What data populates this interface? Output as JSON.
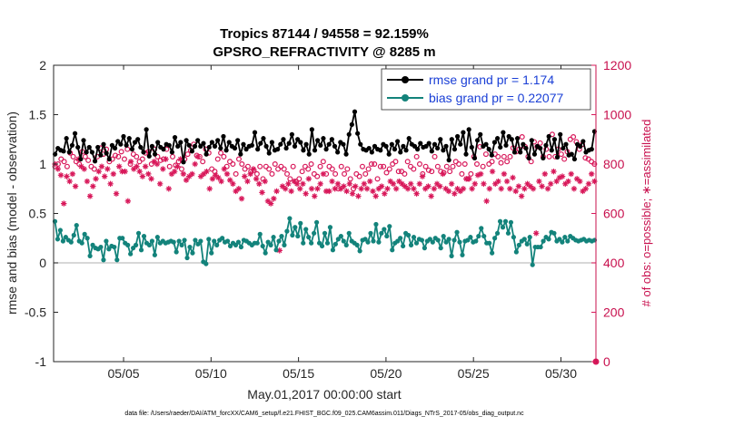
{
  "chart_data": {
    "type": "line",
    "title": "Tropics 87144 / 94558 = 92.159%",
    "subtitle": "GPSRO_REFRACTIVITY @ 8285 m",
    "xlabel": "May.01,2017 00:00:00 start",
    "ylabel": "rmse and bias (model - observation)",
    "y2label": "# of obs: o=possible; ∗=assimilated",
    "footnote": "data file: /Users/raeder/DAI/ATM_forcXX/CAM6_setup/f.e21.FHIST_BGC.f09_025.CAM6assim.011/Diags_NTrS_2017-05/obs_diag_output.nc",
    "xlim": [
      1,
      32
    ],
    "ylim": [
      -1,
      2
    ],
    "y2lim": [
      0,
      1200
    ],
    "xticks": [
      5,
      10,
      15,
      20,
      25,
      30
    ],
    "xticklabels": [
      "05/05",
      "05/10",
      "05/15",
      "05/20",
      "05/25",
      "05/30"
    ],
    "yticks": [
      -1,
      -0.5,
      0,
      0.5,
      1,
      1.5,
      2
    ],
    "yticklabels": [
      "-1",
      "-0.5",
      "0",
      "0.5",
      "1",
      "1.5",
      "2"
    ],
    "y2ticks": [
      0,
      200,
      400,
      600,
      800,
      1000,
      1200
    ],
    "y2ticklabels": [
      "0",
      "200",
      "400",
      "600",
      "800",
      "1000",
      "1200"
    ],
    "legend_location": "top-right",
    "colors": {
      "rmse": "#000000",
      "bias": "#13837b",
      "obs": "#d8185a",
      "zero_line": "#bfbfbf",
      "legend_text": "#1a3fd6"
    },
    "series": [
      {
        "name": "rmse grand pr = 1.174",
        "values": [
          1.1,
          1.16,
          1.14,
          1.13,
          1.26,
          1.12,
          1.19,
          1.31,
          1.17,
          1.05,
          1.24,
          1.12,
          1.17,
          1.12,
          1.03,
          1.17,
          1.09,
          1.2,
          1.11,
          1.05,
          1.19,
          1.16,
          1.23,
          1.2,
          1.28,
          1.19,
          1.26,
          1.15,
          1.22,
          1.25,
          1.17,
          1.12,
          1.35,
          1.08,
          1.18,
          1.1,
          1.22,
          1.17,
          1.15,
          1.2,
          1.19,
          1.12,
          1.27,
          1.18,
          1.22,
          1.02,
          1.24,
          1.19,
          1.13,
          1.18,
          1.24,
          1.18,
          1.21,
          1.1,
          1.17,
          1.22,
          1.18,
          1.24,
          1.16,
          1.28,
          1.14,
          1.22,
          1.18,
          1.16,
          1.24,
          1.1,
          1.2,
          1.15,
          1.18,
          1.19,
          1.32,
          1.15,
          1.21,
          1.26,
          1.18,
          1.11,
          1.22,
          1.14,
          1.15,
          1.2,
          1.25,
          1.16,
          1.21,
          1.3,
          1.18,
          1.25,
          1.22,
          1.14,
          1.2,
          1.1,
          1.35,
          1.14,
          1.24,
          1.19,
          1.26,
          1.15,
          1.2,
          1.25,
          1.18,
          1.12,
          1.22,
          1.2,
          1.1,
          1.3,
          1.4,
          1.53,
          1.31,
          1.2,
          1.15,
          1.14,
          1.16,
          1.12,
          1.18,
          1.15,
          1.14,
          1.2,
          1.18,
          1.1,
          1.2,
          1.15,
          1.23,
          1.12,
          1.18,
          1.14,
          1.26,
          1.2,
          1.18,
          1.15,
          1.21,
          1.17,
          1.18,
          1.21,
          1.13,
          1.2,
          1.16,
          1.25,
          1.14,
          1.18,
          1.04,
          1.25,
          1.15,
          1.28,
          1.2,
          1.32,
          1.1,
          1.35,
          1.17,
          1.06,
          1.24,
          1.3,
          1.18,
          1.2,
          1.15,
          1.09,
          1.22,
          1.26,
          1.17,
          1.32,
          1.19,
          1.28,
          1.25,
          1.12,
          1.26,
          1.12,
          1.2,
          1.16,
          1.06,
          1.24,
          1.1,
          1.18,
          1.16,
          1.06,
          1.19,
          1.28,
          1.14,
          1.25,
          1.07,
          1.3,
          1.16,
          1.2,
          1.09,
          1.1,
          1.05,
          1.2,
          1.18,
          1.23,
          1.12,
          1.14,
          1.15,
          1.33
        ]
      },
      {
        "name": "bias grand pr = 0.22077",
        "values": [
          0.42,
          0.24,
          0.33,
          0.22,
          0.26,
          0.23,
          0.21,
          0.28,
          0.38,
          0.22,
          0.2,
          0.29,
          0.25,
          0.07,
          0.18,
          0.15,
          0.14,
          0.16,
          0.03,
          0.22,
          0.14,
          0.17,
          0.16,
          0.03,
          0.25,
          0.25,
          0.2,
          0.18,
          0.09,
          0.15,
          0.18,
          0.3,
          0.13,
          0.27,
          0.2,
          0.18,
          0.22,
          0.08,
          0.26,
          0.2,
          0.22,
          0.2,
          0.21,
          0.22,
          0.21,
          0.11,
          0.22,
          0.18,
          0.23,
          0.05,
          0.16,
          0.1,
          0.23,
          0.19,
          0.22,
          0.01,
          -0.01,
          0.24,
          0.1,
          0.22,
          0.18,
          0.23,
          0.25,
          0.21,
          0.22,
          0.17,
          0.2,
          0.18,
          0.21,
          0.16,
          0.23,
          0.22,
          0.2,
          0.18,
          0.2,
          0.2,
          0.29,
          0.17,
          0.1,
          0.21,
          0.18,
          0.26,
          0.13,
          0.22,
          0.27,
          0.18,
          0.32,
          0.45,
          0.28,
          0.36,
          0.27,
          0.4,
          0.2,
          0.34,
          0.26,
          0.2,
          0.3,
          0.41,
          0.2,
          0.17,
          0.3,
          0.2,
          0.36,
          0.13,
          0.19,
          0.24,
          0.27,
          0.22,
          0.18,
          0.3,
          0.22,
          0.2,
          0.18,
          0.12,
          0.23,
          0.24,
          0.21,
          0.3,
          0.22,
          0.39,
          0.21,
          0.3,
          0.34,
          0.27,
          0.37,
          0.13,
          0.2,
          0.22,
          0.25,
          0.17,
          0.3,
          0.28,
          0.18,
          0.26,
          0.2,
          0.24,
          0.23,
          0.15,
          0.22,
          0.24,
          0.21,
          0.25,
          0.23,
          0.15,
          0.27,
          0.21,
          0.24,
          0.07,
          0.23,
          0.31,
          0.21,
          0.08,
          0.22,
          0.23,
          0.26,
          0.21,
          0.22,
          0.27,
          0.35,
          0.27,
          0.2,
          0.2,
          0.1,
          0.25,
          0.3,
          0.42,
          0.36,
          0.42,
          0.3,
          0.41,
          0.26,
          0.11,
          0.18,
          0.22,
          0.24,
          0.19,
          0.26,
          -0.02,
          0.16,
          0.16,
          0.16,
          0.22,
          0.26,
          0.24,
          0.31,
          0.3,
          0.22,
          0.24,
          0.21,
          0.26,
          0.22,
          0.27,
          0.25,
          0.23,
          0.22,
          0.23,
          0.24,
          0.22,
          0.23,
          0.22,
          0.23
        ]
      }
    ],
    "obs_possible": [
      790,
      800,
      820,
      810,
      790,
      845,
      830,
      810,
      800,
      850,
      830,
      815,
      790,
      780,
      830,
      865,
      840,
      860,
      810,
      820,
      835,
      830,
      850,
      820,
      860,
      800,
      840,
      830,
      810,
      820,
      845,
      850,
      800,
      860,
      830,
      815,
      820,
      860,
      790,
      830,
      795,
      810,
      780,
      820,
      840,
      855,
      880,
      835,
      830,
      810,
      860,
      845,
      780,
      770,
      820,
      845,
      830,
      790,
      810,
      800,
      760,
      820,
      800,
      780,
      790,
      770,
      775,
      760,
      790,
      740,
      790,
      780,
      760,
      800,
      780,
      790,
      780,
      760,
      740,
      790,
      730,
      740,
      770,
      790,
      780,
      800,
      760,
      750,
      790,
      810,
      760,
      790,
      780,
      760,
      700,
      790,
      760,
      780,
      740,
      700,
      760,
      750,
      790,
      760,
      780,
      800,
      800,
      740,
      790,
      790,
      765,
      780,
      800,
      810,
      770,
      770,
      760,
      810,
      790,
      780,
      830,
      800,
      760,
      790,
      775,
      770,
      830,
      790,
      770,
      765,
      790,
      770,
      790,
      810,
      800,
      760,
      800,
      740,
      760,
      830,
      800,
      870,
      790,
      840,
      800,
      810,
      840,
      830,
      805,
      830,
      810,
      830,
      865,
      850,
      860,
      910,
      870,
      830,
      810,
      890,
      870,
      885,
      830,
      860,
      830,
      920,
      830,
      860,
      840,
      820,
      850,
      900,
      910,
      890,
      860,
      880,
      825,
      820,
      810,
      800
    ],
    "obs_assimilated": [
      800,
      780,
      755,
      640,
      750,
      730,
      760,
      710,
      820,
      790,
      780,
      730,
      670,
      710,
      740,
      770,
      790,
      750,
      780,
      720,
      760,
      680,
      790,
      770,
      770,
      650,
      810,
      780,
      790,
      770,
      750,
      790,
      760,
      740,
      810,
      800,
      720,
      780,
      820,
      700,
      760,
      770,
      790,
      820,
      760,
      735,
      750,
      760,
      800,
      830,
      750,
      760,
      770,
      700,
      740,
      755,
      745,
      730,
      780,
      760,
      735,
      720,
      690,
      700,
      660,
      750,
      730,
      760,
      780,
      740,
      720,
      685,
      730,
      650,
      640,
      660,
      690,
      450,
      710,
      700,
      720,
      690,
      730,
      720,
      700,
      720,
      680,
      740,
      700,
      670,
      700,
      720,
      760,
      690,
      690,
      730,
      700,
      720,
      700,
      710,
      690,
      720,
      680,
      710,
      670,
      700,
      720,
      700,
      730,
      690,
      670,
      700,
      710,
      680,
      700,
      730,
      720,
      700,
      730,
      720,
      710,
      700,
      720,
      700,
      680,
      720,
      750,
      700,
      710,
      670,
      700,
      720,
      710,
      760,
      700,
      690,
      720,
      680,
      700,
      690,
      700,
      740,
      740,
      700,
      720,
      755,
      760,
      720,
      650,
      700,
      770,
      720,
      730,
      700,
      760,
      730,
      700,
      745,
      690,
      710,
      670,
      700,
      720,
      710,
      700,
      520,
      730,
      710,
      760,
      700,
      720,
      770,
      730,
      745,
      750,
      720,
      730,
      760,
      700,
      740,
      730,
      690,
      700,
      720,
      760,
      730
    ]
  }
}
